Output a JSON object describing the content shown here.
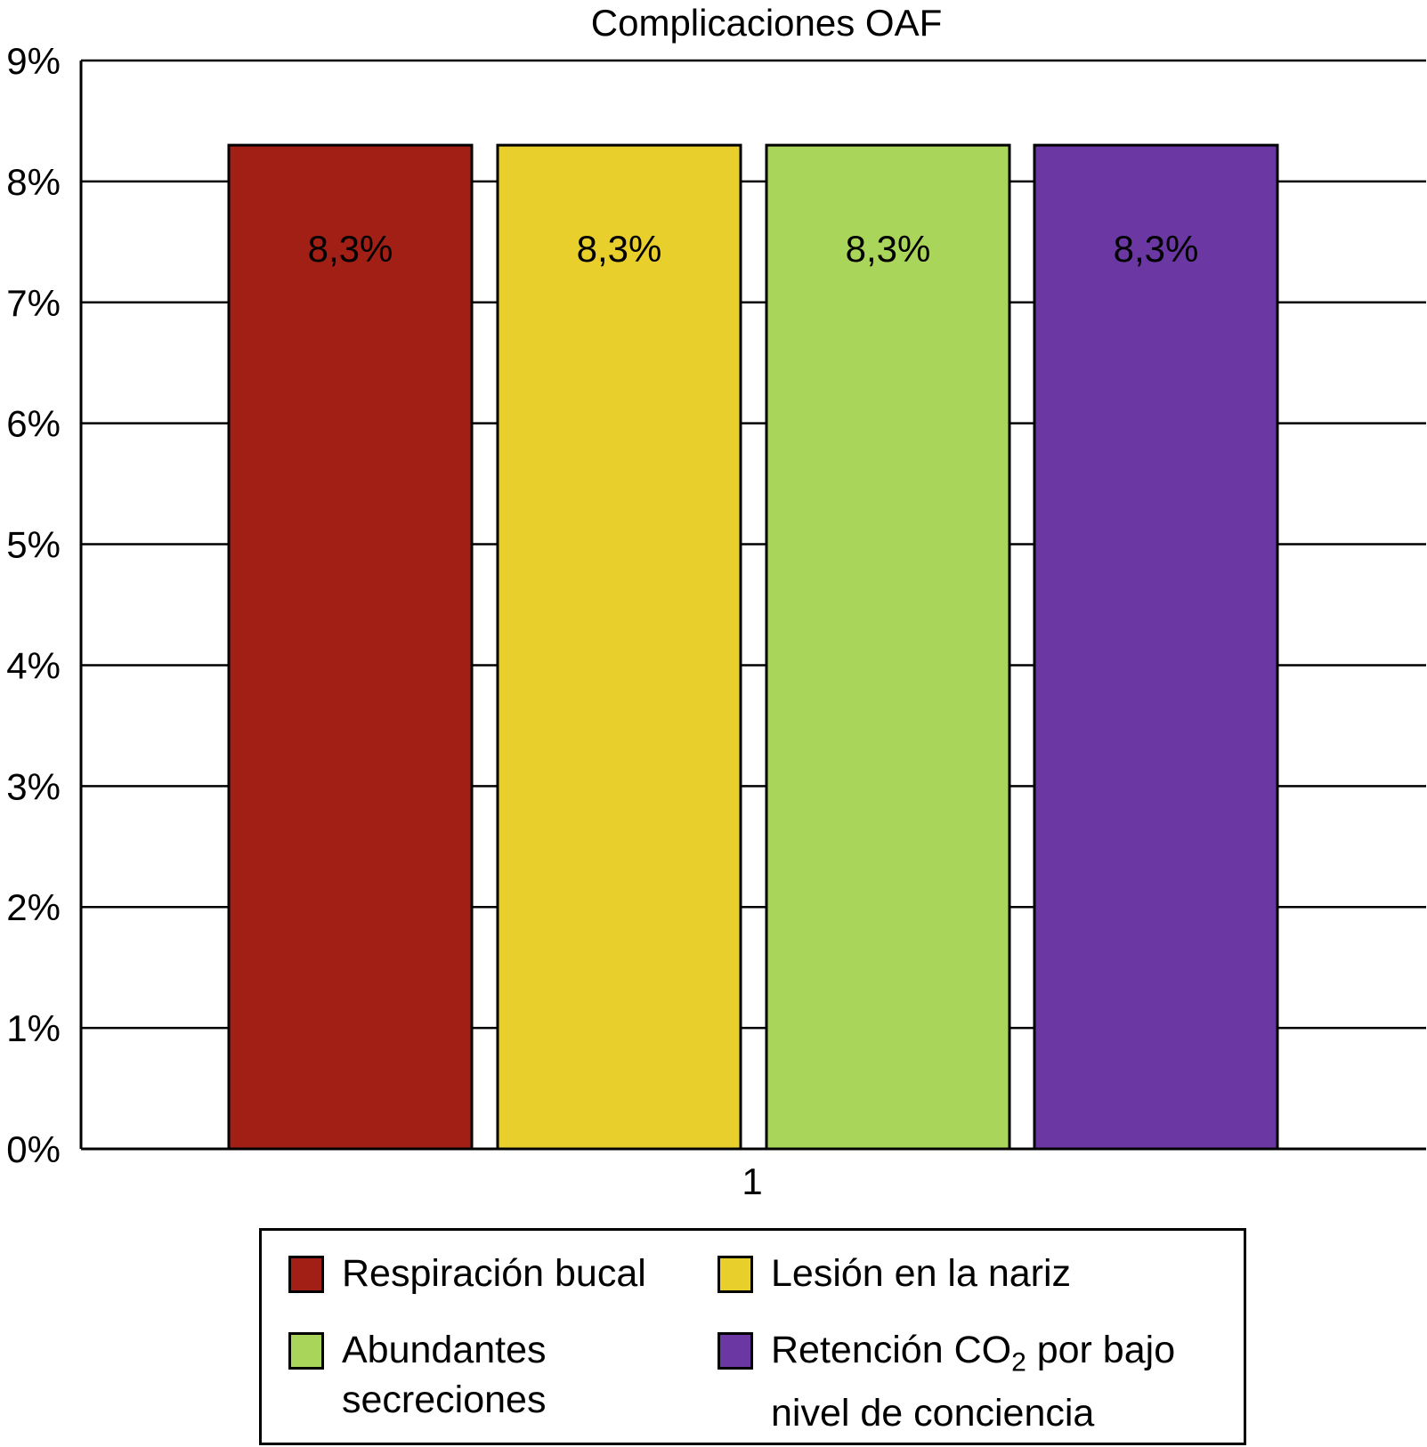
{
  "chart_data": {
    "type": "bar",
    "title": "Complicaciones OAF",
    "categories": [
      "1"
    ],
    "series": [
      {
        "name": "Respiración bucal",
        "values": [
          8.3
        ],
        "label": "8,3%",
        "color": "#A21F16"
      },
      {
        "name": "Lesión en la nariz",
        "values": [
          8.3
        ],
        "label": "8,3%",
        "color": "#E9CF2C"
      },
      {
        "name": "Abundantes secreciones",
        "values": [
          8.3
        ],
        "label": "8,3%",
        "color": "#A9D65A"
      },
      {
        "name": "Retención CO2 por bajo nivel de conciencia",
        "values": [
          8.3
        ],
        "label": "8,3%",
        "color": "#6B37A2"
      }
    ],
    "yticks": [
      "0%",
      "1%",
      "2%",
      "3%",
      "4%",
      "5%",
      "6%",
      "7%",
      "8%",
      "9%"
    ],
    "ylim": [
      0,
      9
    ],
    "grid": true,
    "legend_position": "bottom"
  },
  "legend": {
    "items": [
      {
        "lines": [
          "Respiración bucal"
        ]
      },
      {
        "lines": [
          "Lesión en la nariz"
        ]
      },
      {
        "lines": [
          "Abundantes",
          "secreciones"
        ]
      },
      {
        "pre": "Retención CO",
        "sub": "2",
        "post": " por bajo",
        "line2": "nivel de conciencia"
      }
    ]
  }
}
